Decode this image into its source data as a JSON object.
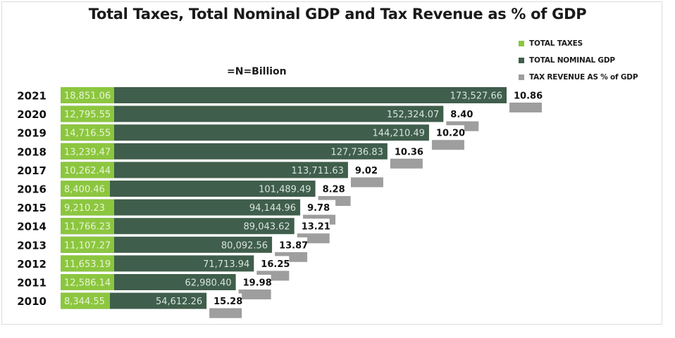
{
  "chart_data": {
    "type": "bar",
    "orientation": "horizontal",
    "stacked": true,
    "title": "Total Taxes, Total Nominal GDP and Tax Revenue as % of GDP",
    "subtitle": "=N=Billion",
    "xlabel": "",
    "ylabel": "",
    "grid": false,
    "legend_position": "top-right",
    "categories": [
      "2021",
      "2020",
      "2019",
      "2018",
      "2017",
      "2016",
      "2015",
      "2014",
      "2013",
      "2012",
      "2011",
      "2010"
    ],
    "series": [
      {
        "name": "TOTAL TAXES",
        "color": "#8cc63f",
        "label_color": "#e8f5d6",
        "values": [
          18851.06,
          12795.55,
          14716.55,
          13239.47,
          10262.44,
          8400.46,
          9210.23,
          11766.23,
          11107.27,
          11653.19,
          12586.14,
          8344.55
        ],
        "labels": [
          "18,851.06",
          "12,795.55",
          "14,716.55",
          "13,239.47",
          "10,262.44",
          "8,400.46",
          "9,210.23",
          "11,766.23",
          "11,107.27",
          "11,653.19",
          "12,586.14",
          "8,344.55"
        ]
      },
      {
        "name": "TOTAL NOMINAL GDP",
        "color": "#3f5e4b",
        "label_color": "#d7e4dc",
        "values": [
          173527.66,
          152324.07,
          144210.49,
          127736.83,
          113711.63,
          101489.49,
          94144.96,
          89043.62,
          80092.56,
          71713.94,
          62980.4,
          54612.26
        ],
        "labels": [
          "173,527.66",
          "152,324.07",
          "144,210.49",
          "127,736.83",
          "113,711.63",
          "101,489.49",
          "94,144.96",
          "89,043.62",
          "80,092.56",
          "71,713.94",
          "62,980.40",
          "54,612.26"
        ]
      },
      {
        "name": "TAX REVENUE AS % of GDP",
        "color": "#9e9e9e",
        "label_color": "#111111",
        "values": [
          10.86,
          8.4,
          10.2,
          10.36,
          9.02,
          8.28,
          9.78,
          13.21,
          13.87,
          16.25,
          19.98,
          15.28
        ],
        "labels": [
          "10.86",
          "8.40",
          "10.20",
          "10.36",
          "9.02",
          "8.28",
          "9.78",
          "13.21",
          "13.87",
          "16.25",
          "19.98",
          "15.28"
        ]
      }
    ]
  }
}
